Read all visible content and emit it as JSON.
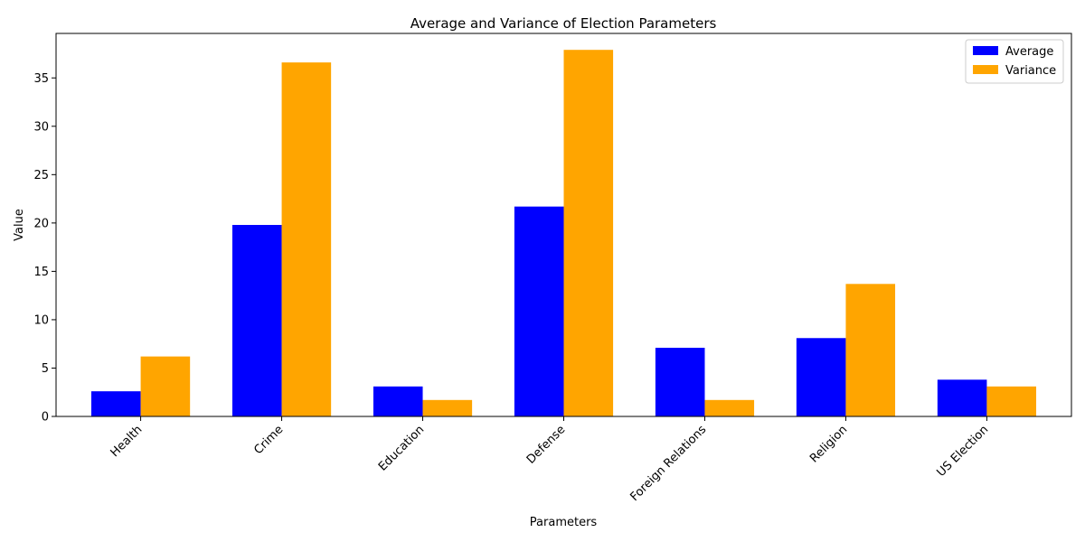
{
  "chart_data": {
    "type": "bar",
    "title": "Average and Variance of Election Parameters",
    "xlabel": "Parameters",
    "ylabel": "Value",
    "categories": [
      "Health",
      "Crime",
      "Education",
      "Defense",
      "Foreign Relations",
      "Religion",
      "US Election"
    ],
    "series": [
      {
        "name": "Average",
        "color": "#0000ff",
        "values": [
          2.6,
          19.8,
          3.1,
          21.7,
          7.1,
          8.1,
          3.8
        ]
      },
      {
        "name": "Variance",
        "color": "#ffa500",
        "values": [
          6.2,
          36.6,
          1.7,
          37.9,
          1.7,
          13.7,
          3.1
        ]
      }
    ],
    "ylim": [
      0,
      39.6
    ],
    "yticks": [
      0,
      5,
      10,
      15,
      20,
      25,
      30,
      35
    ],
    "grid": false,
    "legend": "top-right"
  }
}
